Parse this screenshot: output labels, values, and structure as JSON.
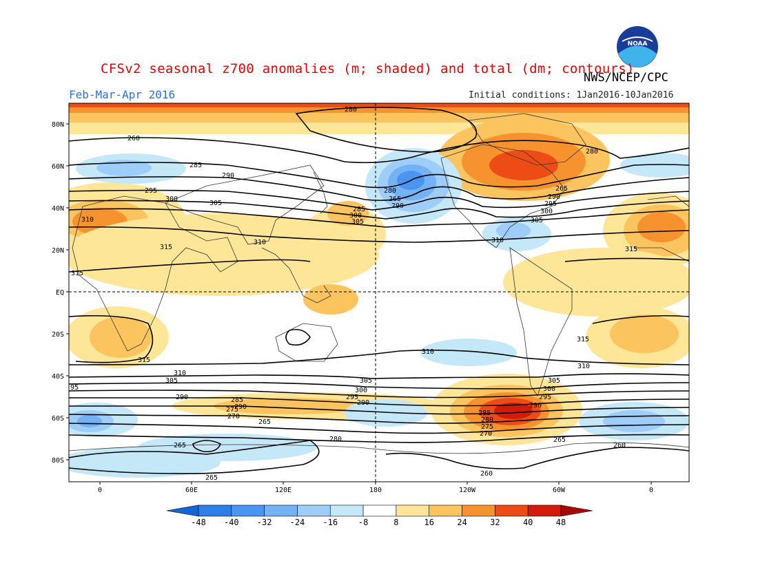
{
  "title": "CFSv2 seasonal z700 anomalies (m; shaded) and total (dm; contours)",
  "agency": "NWS/NCEP/CPC",
  "logo_text": "NOAA",
  "season": "Feb-Mar-Apr 2016",
  "initial_conditions": "Initial conditions: 1Jan2016-10Jan2016",
  "lat_labels": [
    "80N",
    "60N",
    "40N",
    "20N",
    "EQ",
    "20S",
    "40S",
    "60S",
    "80S"
  ],
  "lon_labels": [
    "0",
    "60E",
    "120E",
    "180",
    "120W",
    "60W",
    "0"
  ],
  "colorbar": {
    "labels": [
      "-48",
      "-40",
      "-32",
      "-24",
      "-16",
      "-8",
      "8",
      "16",
      "24",
      "32",
      "40",
      "48"
    ],
    "colors": [
      "#1565d8",
      "#2f7fe8",
      "#4a95ef",
      "#74b2f5",
      "#9dcdf8",
      "#c4e8f8",
      "#ffffff",
      "#fde697",
      "#fbc45e",
      "#f7932f",
      "#ee4c17",
      "#d21c0b",
      "#a8070a"
    ]
  },
  "contour_labels": [
    "280",
    "260",
    "285",
    "290",
    "295",
    "300",
    "305",
    "310",
    "315",
    "265",
    "270",
    "275",
    "95"
  ]
}
